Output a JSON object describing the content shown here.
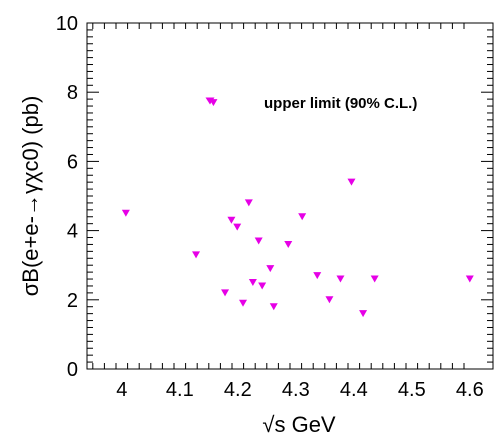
{
  "chart_data": {
    "type": "scatter",
    "xlabel": "√s GeV",
    "ylabel": "σB(e+e-→γχc0) (pb)",
    "xlim": [
      3.94,
      4.64
    ],
    "ylim": [
      0,
      10
    ],
    "x_ticks": [
      "4",
      "4.1",
      "4.2",
      "4.3",
      "4.4",
      "4.5",
      "4.6"
    ],
    "y_ticks": [
      "0",
      "2",
      "4",
      "6",
      "8",
      "10"
    ],
    "grid": false,
    "legend_position": "top-right",
    "marker_color": "#e600e6",
    "series": [
      {
        "name": "upper limit (90% C.L.)",
        "points": [
          [
            4.007,
            4.5
          ],
          [
            4.128,
            3.3
          ],
          [
            4.158,
            7.7
          ],
          [
            4.178,
            2.2
          ],
          [
            4.189,
            4.3
          ],
          [
            4.199,
            4.1
          ],
          [
            4.209,
            1.9
          ],
          [
            4.219,
            4.8
          ],
          [
            4.226,
            2.5
          ],
          [
            4.236,
            3.7
          ],
          [
            4.242,
            2.4
          ],
          [
            4.256,
            2.9
          ],
          [
            4.262,
            1.8
          ],
          [
            4.287,
            3.6
          ],
          [
            4.311,
            4.4
          ],
          [
            4.337,
            2.7
          ],
          [
            4.358,
            2.0
          ],
          [
            4.377,
            2.6
          ],
          [
            4.396,
            5.4
          ],
          [
            4.416,
            1.6
          ],
          [
            4.436,
            2.6
          ],
          [
            4.6,
            2.6
          ]
        ]
      }
    ]
  }
}
